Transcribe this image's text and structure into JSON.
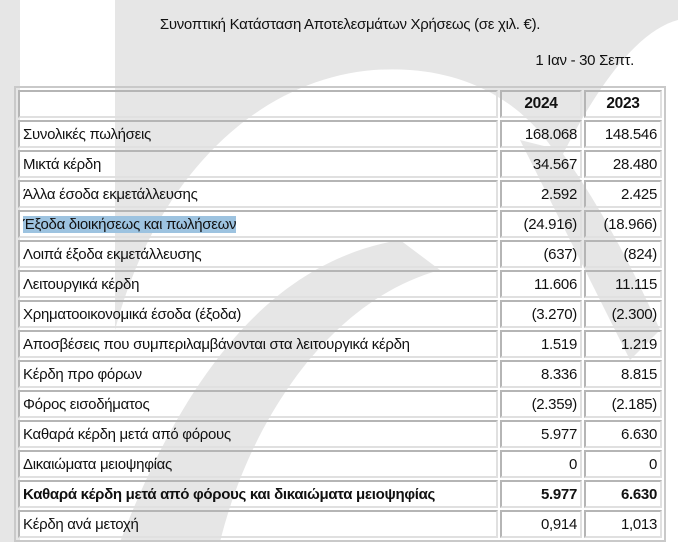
{
  "title": "Συνοπτική Κατάσταση Αποτελεσμάτων Χρήσεως (σε χιλ. €).",
  "period": "1 Ιαν - 30 Σεπτ.",
  "columns": [
    "2024",
    "2023"
  ],
  "rows": [
    {
      "label": "Συνολικές πωλήσεις",
      "v2024": "168.068",
      "v2023": "148.546"
    },
    {
      "label": "Μικτά κέρδη",
      "v2024": "34.567",
      "v2023": "28.480"
    },
    {
      "label": "Άλλα έσοδα εκμετάλλευσης",
      "v2024": "2.592",
      "v2023": "2.425"
    },
    {
      "label": "Έξοδα διοικήσεως και πωλήσεων",
      "v2024": "(24.916)",
      "v2023": "(18.966)",
      "highlighted": true
    },
    {
      "label": "Λοιπά έξοδα εκμετάλλευσης",
      "v2024": "(637)",
      "v2023": "(824)"
    },
    {
      "label": "Λειτουργικά κέρδη",
      "v2024": "11.606",
      "v2023": "11.115"
    },
    {
      "label": "Χρηματοοικονομικά έσοδα (έξοδα)",
      "v2024": "(3.270)",
      "v2023": "(2.300)"
    },
    {
      "label": "Αποσβέσεις που συμπεριλαμβάνονται στα λειτουργικά κέρδη",
      "v2024": "1.519",
      "v2023": "1.219"
    },
    {
      "label": "Κέρδη προ φόρων",
      "v2024": "8.336",
      "v2023": "8.815"
    },
    {
      "label": "Φόρος εισοδήματος",
      "v2024": "(2.359)",
      "v2023": "(2.185)"
    },
    {
      "label": "Καθαρά κέρδη μετά από φόρους",
      "v2024": "5.977",
      "v2023": "6.630"
    },
    {
      "label": "Δικαιώματα μειοψηφίας",
      "v2024": "0",
      "v2023": "0"
    },
    {
      "label": "Καθαρά κέρδη μετά από φόρους και δικαιώματα μειοψηφίας",
      "v2024": "5.977",
      "v2023": "6.630",
      "bold": true
    },
    {
      "label": "Κέρδη ανά μετοχή",
      "v2024": "0,914",
      "v2023": "1,013"
    }
  ],
  "colors": {
    "highlight": "#9dc3e0",
    "watermark": "#e3e3e3"
  }
}
